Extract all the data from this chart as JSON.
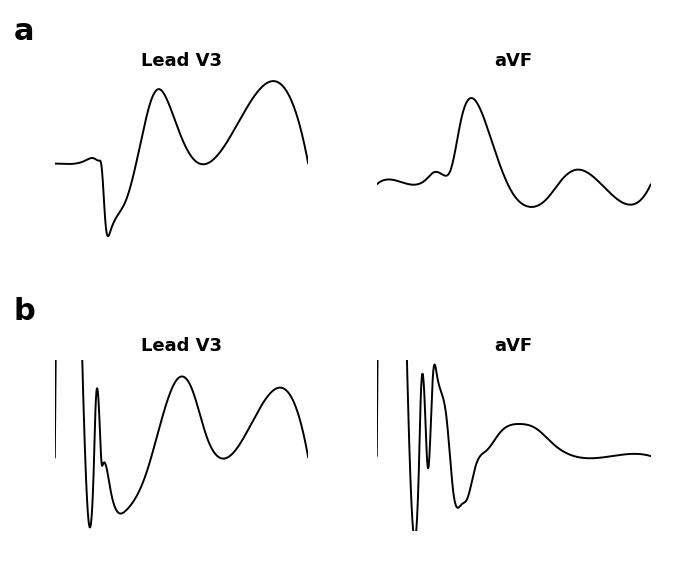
{
  "title_a": "a",
  "title_b": "b",
  "label_a_v3": "Lead V3",
  "label_a_avf": "aVF",
  "label_b_v3": "Lead V3",
  "label_b_avf": "aVF",
  "line_color": "#000000",
  "bg_color": "#ffffff",
  "line_width": 1.4,
  "fig_width": 6.85,
  "fig_height": 5.71
}
